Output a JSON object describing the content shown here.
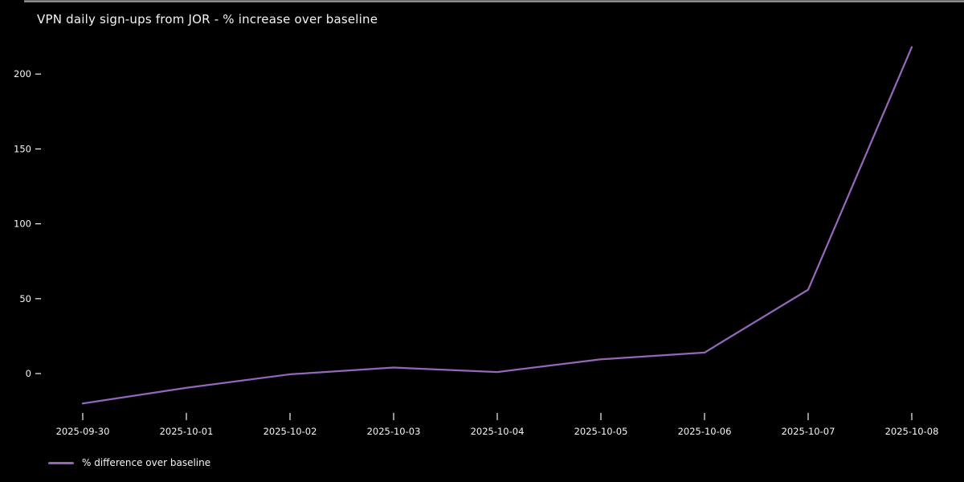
{
  "chart_data": {
    "type": "line",
    "title": "VPN daily sign-ups from JOR - % increase over baseline",
    "x": [
      "2025-09-30",
      "2025-10-01",
      "2025-10-02",
      "2025-10-03",
      "2025-10-04",
      "2025-10-05",
      "2025-10-06",
      "2025-10-07",
      "2025-10-08"
    ],
    "series": [
      {
        "name": "% difference over baseline",
        "values": [
          -20,
          -9.5,
          -0.5,
          4,
          1,
          9.5,
          14,
          56,
          218
        ]
      }
    ],
    "yticks": [
      0,
      50,
      100,
      150,
      200
    ],
    "ylim": [
      -29,
      225
    ],
    "xlabel": "",
    "ylabel": "",
    "grid": false,
    "legend_position": "below-axis-lower-left",
    "colors": {
      "line": "#9467bd",
      "background": "#000000",
      "text": "#f5f5f5"
    }
  }
}
